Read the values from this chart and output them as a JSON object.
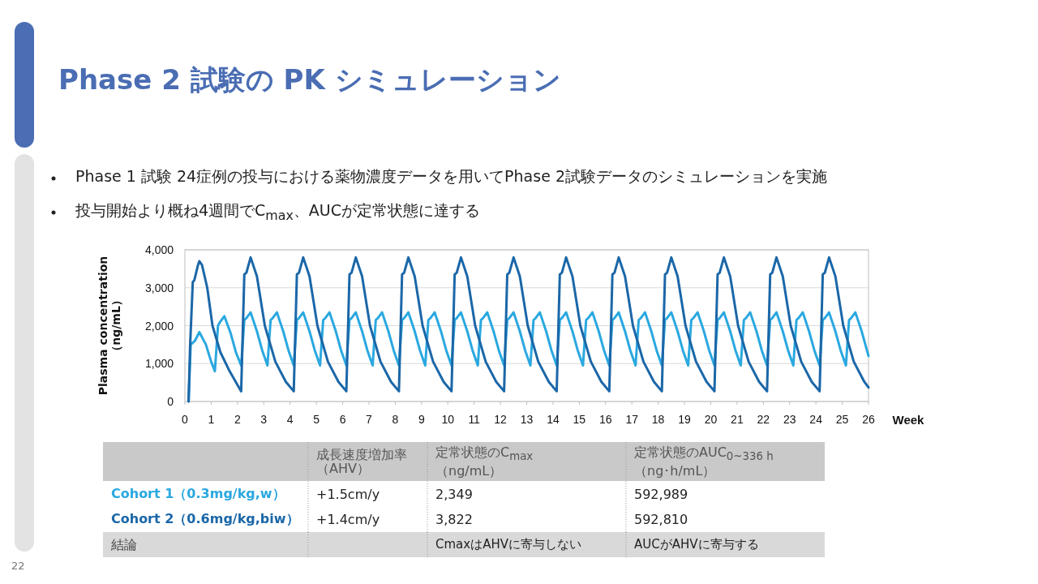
{
  "chart_data": {
    "type": "line",
    "title": "Phase 2 試験の PK シミュレーション",
    "xlabel": "Week",
    "ylabel": "Plasma concentration\n（ng/mL）",
    "xlim": [
      0,
      26
    ],
    "xticks": [
      0,
      1,
      2,
      3,
      4,
      5,
      6,
      7,
      8,
      9,
      10,
      11,
      12,
      13,
      14,
      15,
      16,
      17,
      18,
      19,
      20,
      21,
      22,
      23,
      24,
      25,
      26
    ],
    "ylim": [
      0,
      4000
    ],
    "yticks": [
      {
        "value": 0,
        "label": "0"
      },
      {
        "value": 1000,
        "label": "1,000"
      },
      {
        "value": 2000,
        "label": "2,000"
      },
      {
        "value": 3000,
        "label": "3,000"
      },
      {
        "value": 4000,
        "label": "4,000"
      }
    ],
    "grid": "y",
    "series": [
      {
        "name": "Cohort 1（0.3mg/kg,w）",
        "color": "#2aa8e0",
        "x": [
          0.14,
          0.22,
          0.3,
          0.38,
          0.55,
          0.8,
          1.0,
          1.14,
          1.26,
          1.34,
          1.5,
          1.74,
          1.94,
          2.14,
          2.26,
          2.34,
          2.5,
          2.74,
          2.94,
          3.14,
          3.26,
          3.34,
          3.5,
          3.74,
          3.94,
          4.14,
          4.26,
          4.34,
          4.5,
          4.74,
          4.94,
          5.14,
          5.26,
          5.34,
          5.5,
          5.74,
          5.94,
          6.14,
          6.26,
          6.34,
          6.5,
          6.74,
          6.94,
          7.14,
          7.26,
          7.34,
          7.5,
          7.74,
          7.94,
          8.14,
          8.26,
          8.34,
          8.5,
          8.74,
          8.94,
          9.14,
          9.26,
          9.34,
          9.5,
          9.74,
          9.94,
          10.14,
          10.26,
          10.34,
          10.5,
          10.74,
          10.94,
          11.14,
          11.26,
          11.34,
          11.5,
          11.74,
          11.94,
          12.14,
          12.26,
          12.34,
          12.5,
          12.74,
          12.94,
          13.14,
          13.26,
          13.34,
          13.5,
          13.74,
          13.94,
          14.14,
          14.26,
          14.34,
          14.5,
          14.74,
          14.94,
          15.14,
          15.26,
          15.34,
          15.5,
          15.74,
          15.94,
          16.14,
          16.26,
          16.34,
          16.5,
          16.74,
          16.94,
          17.14,
          17.26,
          17.34,
          17.5,
          17.74,
          17.94,
          18.14,
          18.26,
          18.34,
          18.5,
          18.74,
          18.94,
          19.14,
          19.26,
          19.34,
          19.5,
          19.74,
          19.94,
          20.14,
          20.26,
          20.34,
          20.5,
          20.74,
          20.94,
          21.14,
          21.26,
          21.34,
          21.5,
          21.74,
          21.94,
          22.14,
          22.26,
          22.34,
          22.5,
          22.74,
          22.94,
          23.14,
          23.26,
          23.34,
          23.5,
          23.74,
          23.94,
          24.14,
          24.26,
          24.34,
          24.5,
          24.74,
          24.94,
          25.14,
          25.26,
          25.34,
          25.5,
          25.74,
          25.94,
          26
        ],
        "values": [
          0,
          1500,
          1550,
          1600,
          1830,
          1500,
          1050,
          800,
          2000,
          2100,
          2250,
          1800,
          1300,
          950,
          2150,
          2200,
          2350,
          1850,
          1350,
          950,
          2150,
          2200,
          2350,
          1850,
          1350,
          950,
          2150,
          2200,
          2350,
          1850,
          1350,
          950,
          2150,
          2200,
          2350,
          1850,
          1350,
          950,
          2150,
          2200,
          2350,
          1850,
          1350,
          950,
          2150,
          2200,
          2350,
          1850,
          1350,
          950,
          2150,
          2200,
          2350,
          1850,
          1350,
          950,
          2150,
          2200,
          2350,
          1850,
          1350,
          950,
          2150,
          2200,
          2350,
          1850,
          1350,
          950,
          2150,
          2200,
          2350,
          1850,
          1350,
          950,
          2150,
          2200,
          2350,
          1850,
          1350,
          950,
          2150,
          2200,
          2350,
          1850,
          1350,
          950,
          2150,
          2200,
          2350,
          1850,
          1350,
          950,
          2150,
          2200,
          2350,
          1850,
          1350,
          950,
          2150,
          2200,
          2350,
          1850,
          1350,
          950,
          2150,
          2200,
          2350,
          1850,
          1350,
          950,
          2150,
          2200,
          2350,
          1850,
          1350,
          950,
          2150,
          2200,
          2350,
          1850,
          1350,
          950,
          2150,
          2200,
          2350,
          1850,
          1350,
          950,
          2150,
          2200,
          2350,
          1850,
          1350,
          950,
          2150,
          2200,
          2350,
          1850,
          1350,
          950,
          2150,
          2200,
          2350,
          1850,
          1350,
          950,
          2150,
          2200,
          2350,
          1850,
          1350,
          950,
          2150,
          2200,
          2350,
          1850,
          1350,
          1200
        ]
      },
      {
        "name": "Cohort 2（0.6mg/kg,biw）",
        "color": "#1b67a8",
        "x": [
          0.14,
          0.2,
          0.3,
          0.36,
          0.5,
          0.55,
          0.65,
          0.85,
          1.05,
          1.35,
          1.7,
          1.95,
          2.14,
          2.26,
          2.34,
          2.5,
          2.74,
          3.04,
          3.44,
          3.84,
          4.14,
          4.26,
          4.34,
          4.5,
          4.74,
          5.04,
          5.44,
          5.84,
          6.14,
          6.26,
          6.34,
          6.5,
          6.74,
          7.04,
          7.44,
          7.84,
          8.14,
          8.26,
          8.34,
          8.5,
          8.74,
          9.04,
          9.44,
          9.84,
          10.14,
          10.26,
          10.34,
          10.5,
          10.74,
          11.04,
          11.44,
          11.84,
          12.14,
          12.26,
          12.34,
          12.5,
          12.74,
          13.04,
          13.44,
          13.84,
          14.14,
          14.26,
          14.34,
          14.5,
          14.74,
          15.04,
          15.44,
          15.84,
          16.14,
          16.26,
          16.34,
          16.5,
          16.74,
          17.04,
          17.44,
          17.84,
          18.14,
          18.26,
          18.34,
          18.5,
          18.74,
          19.04,
          19.44,
          19.84,
          20.14,
          20.26,
          20.34,
          20.5,
          20.74,
          21.04,
          21.44,
          21.84,
          22.14,
          22.26,
          22.34,
          22.5,
          22.74,
          23.04,
          23.44,
          23.84,
          24.14,
          24.26,
          24.34,
          24.5,
          24.74,
          25.04,
          25.44,
          25.84,
          26
        ],
        "values": [
          0,
          1500,
          3150,
          3200,
          3600,
          3700,
          3600,
          3000,
          2000,
          1300,
          800,
          500,
          270,
          3350,
          3400,
          3800,
          3300,
          2000,
          1050,
          520,
          270,
          3350,
          3400,
          3800,
          3300,
          2000,
          1050,
          520,
          270,
          3350,
          3400,
          3800,
          3300,
          2000,
          1050,
          520,
          270,
          3350,
          3400,
          3800,
          3300,
          2000,
          1050,
          520,
          270,
          3350,
          3400,
          3800,
          3300,
          2000,
          1050,
          520,
          270,
          3350,
          3400,
          3800,
          3300,
          2000,
          1050,
          520,
          270,
          3350,
          3400,
          3800,
          3300,
          2000,
          1050,
          520,
          270,
          3350,
          3400,
          3800,
          3300,
          2000,
          1050,
          520,
          270,
          3350,
          3400,
          3800,
          3300,
          2000,
          1050,
          520,
          270,
          3350,
          3400,
          3800,
          3300,
          2000,
          1050,
          520,
          270,
          3350,
          3400,
          3800,
          3300,
          2000,
          1050,
          520,
          270,
          3350,
          3400,
          3800,
          3300,
          2000,
          1050,
          520,
          370
        ]
      }
    ],
    "annotations": [
      "Phase 1 試験 24症例の投与における薬物濃度データを用いてPhase 2試験データのシミュレーションを実施",
      "投与開始より概ね4週間でC$_{max}$、AUCが定常状態に達する",
      "成長速度増加率（AHV）",
      "定常状態のC$_{max}$（ng/mL）",
      "定常状態のAUC$_{0~336 h}$（ng･h/mL）",
      "+1.5cm/y",
      "2,349",
      "592,989",
      "+1.4cm/y",
      "3,822",
      "592,810",
      "結論",
      "CmaxはAHVに寄与しない",
      "AUCがAHVに寄与する",
      "22"
    ]
  }
}
